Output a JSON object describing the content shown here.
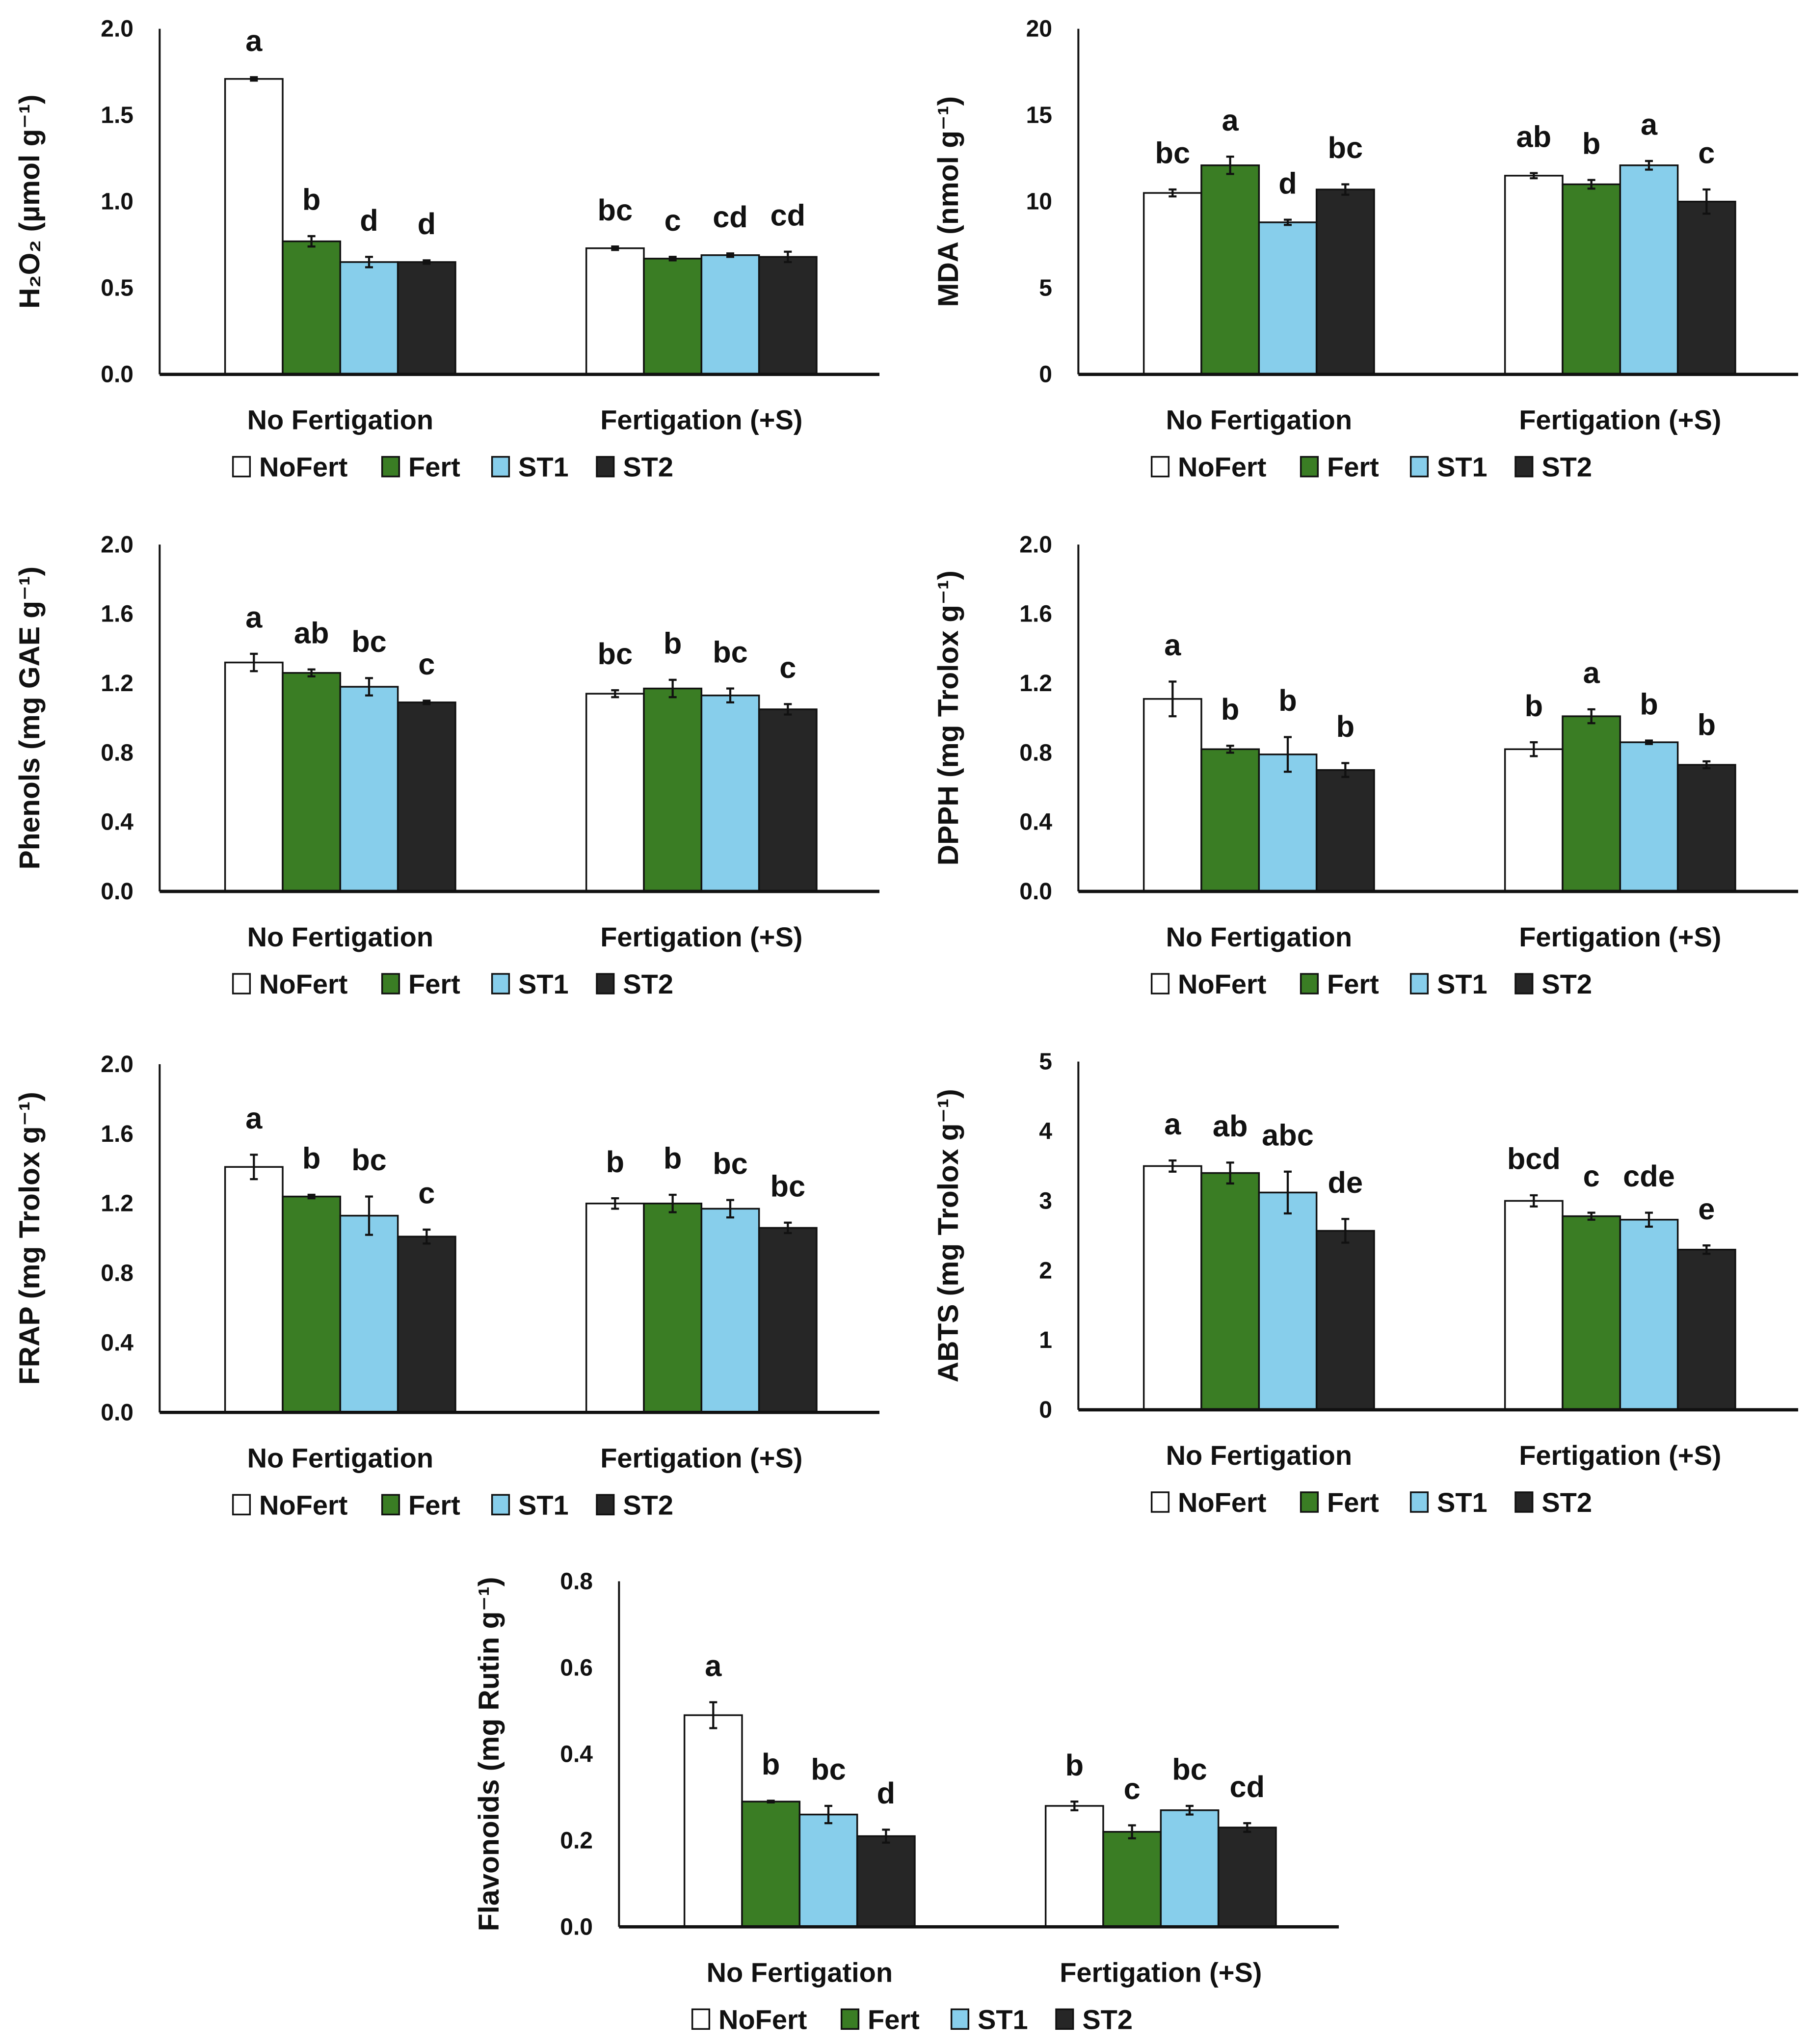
{
  "colors": {
    "NoFert": "#ffffff",
    "Fert": "#3a7d24",
    "ST1": "#87ceeb",
    "ST2": "#262626"
  },
  "chart_data": [
    {
      "type": "bar",
      "id": "h2o2",
      "ylabel": "H₂O₂ (µmol g⁻¹)",
      "ylim": [
        0,
        2.0
      ],
      "yticks": [
        "0.0",
        "0.5",
        "1.0",
        "1.5",
        "2.0"
      ],
      "categories": [
        "No Fertigation",
        "Fertigation (+S)"
      ],
      "series": [
        {
          "name": "NoFert",
          "values": [
            1.71,
            0.73
          ],
          "errors": [
            0.01,
            0.01
          ],
          "letters": [
            "a",
            "bc"
          ]
        },
        {
          "name": "Fert",
          "values": [
            0.77,
            0.67
          ],
          "errors": [
            0.03,
            0.01
          ],
          "letters": [
            "b",
            "c"
          ]
        },
        {
          "name": "ST1",
          "values": [
            0.65,
            0.69
          ],
          "errors": [
            0.03,
            0.01
          ],
          "letters": [
            "d",
            "cd"
          ]
        },
        {
          "name": "ST2",
          "values": [
            0.65,
            0.68
          ],
          "errors": [
            0.01,
            0.03
          ],
          "letters": [
            "d",
            "cd"
          ]
        }
      ]
    },
    {
      "type": "bar",
      "id": "mda",
      "ylabel": "MDA (nmol g⁻¹)",
      "ylim": [
        0,
        20
      ],
      "yticks": [
        "0",
        "5",
        "10",
        "15",
        "20"
      ],
      "categories": [
        "No Fertigation",
        "Fertigation (+S)"
      ],
      "series": [
        {
          "name": "NoFert",
          "values": [
            10.5,
            11.5
          ],
          "errors": [
            0.2,
            0.15
          ],
          "letters": [
            "bc",
            "ab"
          ]
        },
        {
          "name": "Fert",
          "values": [
            12.1,
            11.0
          ],
          "errors": [
            0.5,
            0.25
          ],
          "letters": [
            "a",
            "b"
          ]
        },
        {
          "name": "ST1",
          "values": [
            8.8,
            12.1
          ],
          "errors": [
            0.15,
            0.25
          ],
          "letters": [
            "d",
            "a"
          ]
        },
        {
          "name": "ST2",
          "values": [
            10.7,
            10.0
          ],
          "errors": [
            0.3,
            0.7
          ],
          "letters": [
            "bc",
            "c"
          ]
        }
      ]
    },
    {
      "type": "bar",
      "id": "phenols",
      "ylabel": "Phenols (mg GAE g⁻¹)",
      "ylim": [
        0,
        2.0
      ],
      "yticks": [
        "0.0",
        "0.4",
        "0.8",
        "1.2",
        "1.6",
        "2.0"
      ],
      "categories": [
        "No Fertigation",
        "Fertigation (+S)"
      ],
      "series": [
        {
          "name": "NoFert",
          "values": [
            1.32,
            1.14
          ],
          "errors": [
            0.05,
            0.02
          ],
          "letters": [
            "a",
            "bc"
          ]
        },
        {
          "name": "Fert",
          "values": [
            1.26,
            1.17
          ],
          "errors": [
            0.02,
            0.05
          ],
          "letters": [
            "ab",
            "b"
          ]
        },
        {
          "name": "ST1",
          "values": [
            1.18,
            1.13
          ],
          "errors": [
            0.05,
            0.04
          ],
          "letters": [
            "bc",
            "bc"
          ]
        },
        {
          "name": "ST2",
          "values": [
            1.09,
            1.05
          ],
          "errors": [
            0.01,
            0.03
          ],
          "letters": [
            "c",
            "c"
          ]
        }
      ]
    },
    {
      "type": "bar",
      "id": "dpph",
      "ylabel": "DPPH (mg Trolox g⁻¹)",
      "ylim": [
        0,
        2.0
      ],
      "yticks": [
        "0.0",
        "0.4",
        "0.8",
        "1.2",
        "1.6",
        "2.0"
      ],
      "categories": [
        "No Fertigation",
        "Fertigation (+S)"
      ],
      "series": [
        {
          "name": "NoFert",
          "values": [
            1.11,
            0.82
          ],
          "errors": [
            0.1,
            0.04
          ],
          "letters": [
            "a",
            "b"
          ]
        },
        {
          "name": "Fert",
          "values": [
            0.82,
            1.01
          ],
          "errors": [
            0.02,
            0.04
          ],
          "letters": [
            "b",
            "a"
          ]
        },
        {
          "name": "ST1",
          "values": [
            0.79,
            0.86
          ],
          "errors": [
            0.1,
            0.01
          ],
          "letters": [
            "b",
            "b"
          ]
        },
        {
          "name": "ST2",
          "values": [
            0.7,
            0.73
          ],
          "errors": [
            0.04,
            0.02
          ],
          "letters": [
            "b",
            "b"
          ]
        }
      ]
    },
    {
      "type": "bar",
      "id": "frap",
      "ylabel": "FRAP (mg Trolox g⁻¹)",
      "ylim": [
        0,
        2.0
      ],
      "yticks": [
        "0.0",
        "0.4",
        "0.8",
        "1.2",
        "1.6",
        "2.0"
      ],
      "categories": [
        "No Fertigation",
        "Fertigation (+S)"
      ],
      "series": [
        {
          "name": "NoFert",
          "values": [
            1.41,
            1.2
          ],
          "errors": [
            0.07,
            0.03
          ],
          "letters": [
            "a",
            "b"
          ]
        },
        {
          "name": "Fert",
          "values": [
            1.24,
            1.2
          ],
          "errors": [
            0.01,
            0.05
          ],
          "letters": [
            "b",
            "b"
          ]
        },
        {
          "name": "ST1",
          "values": [
            1.13,
            1.17
          ],
          "errors": [
            0.11,
            0.05
          ],
          "letters": [
            "bc",
            "bc"
          ]
        },
        {
          "name": "ST2",
          "values": [
            1.01,
            1.06
          ],
          "errors": [
            0.04,
            0.03
          ],
          "letters": [
            "c",
            "bc"
          ]
        }
      ]
    },
    {
      "type": "bar",
      "id": "abts",
      "ylabel": "ABTS (mg Trolox g⁻¹)",
      "ylim": [
        0,
        5
      ],
      "yticks": [
        "0",
        "1",
        "2",
        "3",
        "4",
        "5"
      ],
      "categories": [
        "No Fertigation",
        "Fertigation (+S)"
      ],
      "series": [
        {
          "name": "NoFert",
          "values": [
            3.5,
            3.0
          ],
          "errors": [
            0.08,
            0.08
          ],
          "letters": [
            "a",
            "bcd"
          ]
        },
        {
          "name": "Fert",
          "values": [
            3.4,
            2.78
          ],
          "errors": [
            0.15,
            0.05
          ],
          "letters": [
            "ab",
            "c"
          ]
        },
        {
          "name": "ST1",
          "values": [
            3.12,
            2.73
          ],
          "errors": [
            0.3,
            0.1
          ],
          "letters": [
            "abc",
            "cde"
          ]
        },
        {
          "name": "ST2",
          "values": [
            2.57,
            2.3
          ],
          "errors": [
            0.17,
            0.06
          ],
          "letters": [
            "de",
            "e"
          ]
        }
      ]
    },
    {
      "type": "bar",
      "id": "flavonoids",
      "ylabel": "Flavonoids (mg Rutin g⁻¹)",
      "ylim": [
        0,
        0.8
      ],
      "yticks": [
        "0.0",
        "0.2",
        "0.4",
        "0.6",
        "0.8"
      ],
      "categories": [
        "No Fertigation",
        "Fertigation (+S)"
      ],
      "series": [
        {
          "name": "NoFert",
          "values": [
            0.49,
            0.28
          ],
          "errors": [
            0.03,
            0.01
          ],
          "letters": [
            "a",
            "b"
          ]
        },
        {
          "name": "Fert",
          "values": [
            0.29,
            0.22
          ],
          "errors": [
            0.002,
            0.015
          ],
          "letters": [
            "b",
            "c"
          ]
        },
        {
          "name": "ST1",
          "values": [
            0.26,
            0.27
          ],
          "errors": [
            0.02,
            0.01
          ],
          "letters": [
            "bc",
            "bc"
          ]
        },
        {
          "name": "ST2",
          "values": [
            0.21,
            0.23
          ],
          "errors": [
            0.015,
            0.01
          ],
          "letters": [
            "d",
            "cd"
          ]
        }
      ]
    }
  ]
}
